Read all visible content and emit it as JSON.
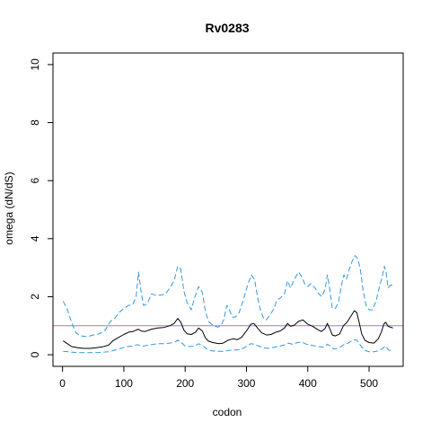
{
  "chart_data": {
    "type": "line",
    "title": "Rv0283",
    "xlabel": "codon",
    "ylabel": "omega (dN/dS)",
    "xlim": [
      0,
      540
    ],
    "ylim": [
      0,
      10
    ],
    "x_ticks": [
      0,
      100,
      200,
      300,
      400,
      500
    ],
    "y_ticks": [
      0,
      2,
      4,
      6,
      8,
      10
    ],
    "reference_line": {
      "y": 1,
      "color": "#cc66cc"
    },
    "grid": false,
    "legend": "none",
    "series": [
      {
        "role": "upper",
        "style": "dashed",
        "color": "#3399dd",
        "points": [
          [
            1,
            1.85
          ],
          [
            8,
            1.55
          ],
          [
            15,
            1.1
          ],
          [
            22,
            0.75
          ],
          [
            30,
            0.65
          ],
          [
            40,
            0.62
          ],
          [
            50,
            0.68
          ],
          [
            60,
            0.72
          ],
          [
            70,
            0.85
          ],
          [
            78,
            1.15
          ],
          [
            85,
            1.25
          ],
          [
            92,
            1.45
          ],
          [
            100,
            1.6
          ],
          [
            108,
            1.7
          ],
          [
            115,
            1.75
          ],
          [
            120,
            2.0
          ],
          [
            124,
            2.85
          ],
          [
            128,
            2.2
          ],
          [
            132,
            1.7
          ],
          [
            138,
            1.75
          ],
          [
            145,
            2.1
          ],
          [
            152,
            2.05
          ],
          [
            160,
            2.05
          ],
          [
            168,
            2.1
          ],
          [
            175,
            2.3
          ],
          [
            182,
            2.55
          ],
          [
            188,
            3.05
          ],
          [
            193,
            2.95
          ],
          [
            198,
            2.2
          ],
          [
            203,
            1.8
          ],
          [
            210,
            1.55
          ],
          [
            216,
            2.0
          ],
          [
            222,
            2.35
          ],
          [
            228,
            2.15
          ],
          [
            233,
            1.5
          ],
          [
            238,
            1.15
          ],
          [
            243,
            1.05
          ],
          [
            248,
            1.0
          ],
          [
            253,
            0.95
          ],
          [
            258,
            1.0
          ],
          [
            263,
            1.2
          ],
          [
            268,
            1.7
          ],
          [
            272,
            1.55
          ],
          [
            277,
            1.3
          ],
          [
            282,
            1.3
          ],
          [
            288,
            1.45
          ],
          [
            295,
            1.9
          ],
          [
            302,
            2.4
          ],
          [
            308,
            2.75
          ],
          [
            313,
            2.6
          ],
          [
            318,
            2.0
          ],
          [
            322,
            1.6
          ],
          [
            327,
            1.3
          ],
          [
            332,
            1.2
          ],
          [
            338,
            1.35
          ],
          [
            345,
            1.6
          ],
          [
            350,
            1.9
          ],
          [
            355,
            1.95
          ],
          [
            362,
            2.1
          ],
          [
            367,
            2.55
          ],
          [
            372,
            2.3
          ],
          [
            378,
            2.6
          ],
          [
            385,
            2.85
          ],
          [
            390,
            2.7
          ],
          [
            395,
            2.45
          ],
          [
            400,
            2.35
          ],
          [
            405,
            2.45
          ],
          [
            412,
            2.3
          ],
          [
            418,
            2.1
          ],
          [
            423,
            2.0
          ],
          [
            428,
            2.25
          ],
          [
            432,
            2.75
          ],
          [
            436,
            2.25
          ],
          [
            440,
            1.6
          ],
          [
            445,
            1.6
          ],
          [
            450,
            1.8
          ],
          [
            455,
            2.4
          ],
          [
            459,
            2.75
          ],
          [
            463,
            2.6
          ],
          [
            467,
            2.9
          ],
          [
            472,
            3.2
          ],
          [
            477,
            3.42
          ],
          [
            482,
            3.3
          ],
          [
            486,
            2.9
          ],
          [
            490,
            2.25
          ],
          [
            495,
            1.7
          ],
          [
            500,
            1.55
          ],
          [
            506,
            1.55
          ],
          [
            512,
            1.9
          ],
          [
            517,
            2.35
          ],
          [
            521,
            2.65
          ],
          [
            525,
            3.05
          ],
          [
            528,
            2.8
          ],
          [
            531,
            2.3
          ],
          [
            535,
            2.4
          ],
          [
            539,
            2.4
          ]
        ]
      },
      {
        "role": "estimate",
        "style": "solid",
        "color": "#000000",
        "points": [
          [
            1,
            0.48
          ],
          [
            8,
            0.38
          ],
          [
            15,
            0.28
          ],
          [
            25,
            0.24
          ],
          [
            35,
            0.22
          ],
          [
            45,
            0.22
          ],
          [
            55,
            0.24
          ],
          [
            65,
            0.27
          ],
          [
            75,
            0.33
          ],
          [
            82,
            0.48
          ],
          [
            90,
            0.58
          ],
          [
            100,
            0.7
          ],
          [
            108,
            0.78
          ],
          [
            115,
            0.8
          ],
          [
            120,
            0.85
          ],
          [
            124,
            0.88
          ],
          [
            128,
            0.82
          ],
          [
            135,
            0.8
          ],
          [
            145,
            0.88
          ],
          [
            155,
            0.92
          ],
          [
            165,
            0.94
          ],
          [
            175,
            1.0
          ],
          [
            182,
            1.08
          ],
          [
            188,
            1.25
          ],
          [
            193,
            1.12
          ],
          [
            198,
            0.85
          ],
          [
            203,
            0.72
          ],
          [
            210,
            0.7
          ],
          [
            217,
            0.78
          ],
          [
            222,
            0.92
          ],
          [
            228,
            0.82
          ],
          [
            233,
            0.58
          ],
          [
            238,
            0.47
          ],
          [
            245,
            0.42
          ],
          [
            255,
            0.38
          ],
          [
            262,
            0.4
          ],
          [
            270,
            0.5
          ],
          [
            278,
            0.55
          ],
          [
            285,
            0.52
          ],
          [
            292,
            0.6
          ],
          [
            300,
            0.82
          ],
          [
            307,
            1.05
          ],
          [
            312,
            1.08
          ],
          [
            318,
            0.92
          ],
          [
            325,
            0.75
          ],
          [
            333,
            0.68
          ],
          [
            340,
            0.7
          ],
          [
            348,
            0.78
          ],
          [
            355,
            0.82
          ],
          [
            362,
            0.92
          ],
          [
            367,
            1.08
          ],
          [
            372,
            0.98
          ],
          [
            378,
            1.02
          ],
          [
            385,
            1.15
          ],
          [
            392,
            1.2
          ],
          [
            400,
            1.05
          ],
          [
            408,
            0.98
          ],
          [
            415,
            0.88
          ],
          [
            422,
            0.8
          ],
          [
            428,
            0.9
          ],
          [
            432,
            1.08
          ],
          [
            436,
            0.9
          ],
          [
            440,
            0.68
          ],
          [
            445,
            0.65
          ],
          [
            452,
            0.72
          ],
          [
            458,
            1.0
          ],
          [
            464,
            1.12
          ],
          [
            470,
            1.32
          ],
          [
            476,
            1.52
          ],
          [
            480,
            1.45
          ],
          [
            484,
            1.1
          ],
          [
            488,
            0.72
          ],
          [
            493,
            0.5
          ],
          [
            500,
            0.42
          ],
          [
            508,
            0.4
          ],
          [
            515,
            0.55
          ],
          [
            520,
            0.78
          ],
          [
            524,
            1.05
          ],
          [
            527,
            1.12
          ],
          [
            531,
            0.98
          ],
          [
            535,
            0.95
          ],
          [
            539,
            0.92
          ]
        ]
      },
      {
        "role": "lower",
        "style": "dashed",
        "color": "#3399dd",
        "points": [
          [
            1,
            0.12
          ],
          [
            10,
            0.1
          ],
          [
            20,
            0.08
          ],
          [
            30,
            0.07
          ],
          [
            45,
            0.07
          ],
          [
            60,
            0.08
          ],
          [
            75,
            0.1
          ],
          [
            85,
            0.16
          ],
          [
            95,
            0.22
          ],
          [
            105,
            0.28
          ],
          [
            115,
            0.3
          ],
          [
            122,
            0.35
          ],
          [
            126,
            0.32
          ],
          [
            132,
            0.3
          ],
          [
            142,
            0.34
          ],
          [
            155,
            0.38
          ],
          [
            165,
            0.38
          ],
          [
            175,
            0.4
          ],
          [
            182,
            0.42
          ],
          [
            188,
            0.5
          ],
          [
            193,
            0.44
          ],
          [
            200,
            0.3
          ],
          [
            208,
            0.28
          ],
          [
            215,
            0.3
          ],
          [
            222,
            0.38
          ],
          [
            228,
            0.32
          ],
          [
            235,
            0.2
          ],
          [
            242,
            0.14
          ],
          [
            252,
            0.12
          ],
          [
            262,
            0.12
          ],
          [
            272,
            0.15
          ],
          [
            280,
            0.16
          ],
          [
            290,
            0.18
          ],
          [
            300,
            0.28
          ],
          [
            307,
            0.38
          ],
          [
            313,
            0.36
          ],
          [
            320,
            0.3
          ],
          [
            328,
            0.24
          ],
          [
            336,
            0.22
          ],
          [
            345,
            0.26
          ],
          [
            355,
            0.3
          ],
          [
            362,
            0.34
          ],
          [
            368,
            0.4
          ],
          [
            375,
            0.36
          ],
          [
            383,
            0.42
          ],
          [
            390,
            0.44
          ],
          [
            398,
            0.36
          ],
          [
            408,
            0.32
          ],
          [
            418,
            0.28
          ],
          [
            426,
            0.26
          ],
          [
            432,
            0.36
          ],
          [
            437,
            0.3
          ],
          [
            442,
            0.2
          ],
          [
            450,
            0.22
          ],
          [
            458,
            0.34
          ],
          [
            466,
            0.4
          ],
          [
            474,
            0.52
          ],
          [
            480,
            0.5
          ],
          [
            486,
            0.32
          ],
          [
            492,
            0.16
          ],
          [
            500,
            0.1
          ],
          [
            508,
            0.1
          ],
          [
            516,
            0.14
          ],
          [
            522,
            0.22
          ],
          [
            527,
            0.3
          ],
          [
            532,
            0.16
          ],
          [
            539,
            0.14
          ]
        ]
      }
    ]
  }
}
